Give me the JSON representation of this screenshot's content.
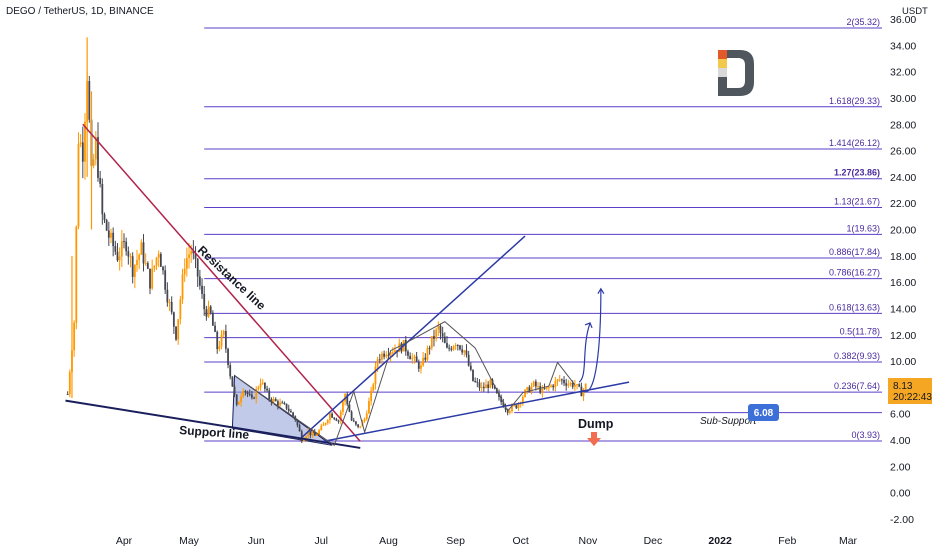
{
  "header": {
    "symbol_line": "DEGO / TetherUS, 1D, BINANCE"
  },
  "axis": {
    "unit": "USDT"
  },
  "price_badge": {
    "price": "8.13",
    "countdown": "20:22:43",
    "color": "#f5a623"
  },
  "chart_data": {
    "type": "candlestick",
    "title": "DEGO / TetherUS, 1D, BINANCE",
    "ylabel": "USDT",
    "ylim": [
      -2.0,
      36.0
    ],
    "y_ticks": [
      "-2.00",
      "0.00",
      "2.00",
      "4.00",
      "6.00",
      "8.00",
      "10.00",
      "12.00",
      "14.00",
      "16.00",
      "18.00",
      "20.00",
      "22.00",
      "24.00",
      "26.00",
      "28.00",
      "30.00",
      "32.00",
      "34.00",
      "36.00"
    ],
    "x_ticks": [
      "Apr",
      "May",
      "Jun",
      "Jul",
      "Aug",
      "Sep",
      "Oct",
      "Nov",
      "Dec",
      "2022",
      "Feb",
      "Mar"
    ],
    "x_tick_dates": [
      "2021-04-01",
      "2021-05-01",
      "2021-06-01",
      "2021-07-01",
      "2021-08-01",
      "2021-09-01",
      "2021-10-01",
      "2021-11-01",
      "2021-12-01",
      "2022-01-01",
      "2022-02-01",
      "2022-03-01"
    ],
    "colors": {
      "up": "#ff9800",
      "down": "#434651",
      "fib": "#5b3fc9",
      "support": "#1a1f5c",
      "resistance": "#b2234b",
      "channel": "#2b3aa6",
      "zigzag": "#555555"
    },
    "price_path": [
      [
        "2021-03-06",
        7.5
      ],
      [
        "2021-03-09",
        13.0
      ],
      [
        "2021-03-11",
        27.0
      ],
      [
        "2021-03-13",
        26.0
      ],
      [
        "2021-03-15",
        32.0
      ],
      [
        "2021-03-17",
        24.0
      ],
      [
        "2021-03-19",
        26.5
      ],
      [
        "2021-03-22",
        21.0
      ],
      [
        "2021-03-25",
        19.5
      ],
      [
        "2021-03-29",
        18.0
      ],
      [
        "2021-04-02",
        19.0
      ],
      [
        "2021-04-05",
        17.0
      ],
      [
        "2021-04-09",
        18.5
      ],
      [
        "2021-04-13",
        16.0
      ],
      [
        "2021-04-17",
        18.5
      ],
      [
        "2021-04-21",
        15.0
      ],
      [
        "2021-04-25",
        12.0
      ],
      [
        "2021-04-29",
        17.5
      ],
      [
        "2021-05-02",
        18.5
      ],
      [
        "2021-05-05",
        16.5
      ],
      [
        "2021-05-08",
        14.0
      ],
      [
        "2021-05-11",
        13.5
      ],
      [
        "2021-05-14",
        11.0
      ],
      [
        "2021-05-17",
        12.0
      ],
      [
        "2021-05-20",
        9.0
      ],
      [
        "2021-05-23",
        6.5
      ],
      [
        "2021-05-26",
        8.0
      ],
      [
        "2021-05-30",
        7.0
      ],
      [
        "2021-06-03",
        8.5
      ],
      [
        "2021-06-07",
        7.2
      ],
      [
        "2021-06-11",
        6.8
      ],
      [
        "2021-06-15",
        6.5
      ],
      [
        "2021-06-19",
        5.6
      ],
      [
        "2021-06-22",
        4.1
      ],
      [
        "2021-06-25",
        4.6
      ],
      [
        "2021-06-28",
        4.3
      ],
      [
        "2021-07-02",
        5.1
      ],
      [
        "2021-07-05",
        6.0
      ],
      [
        "2021-07-09",
        5.5
      ],
      [
        "2021-07-12",
        7.5
      ],
      [
        "2021-07-15",
        5.5
      ],
      [
        "2021-07-18",
        4.9
      ],
      [
        "2021-07-21",
        5.6
      ],
      [
        "2021-07-24",
        7.5
      ],
      [
        "2021-07-27",
        10.2
      ],
      [
        "2021-07-31",
        10.8
      ],
      [
        "2021-08-04",
        10.9
      ],
      [
        "2021-08-08",
        11.2
      ],
      [
        "2021-08-12",
        10.2
      ],
      [
        "2021-08-16",
        9.5
      ],
      [
        "2021-08-20",
        11.2
      ],
      [
        "2021-08-24",
        12.5
      ],
      [
        "2021-08-28",
        10.8
      ],
      [
        "2021-09-01",
        11.5
      ],
      [
        "2021-09-05",
        10.8
      ],
      [
        "2021-09-09",
        8.5
      ],
      [
        "2021-09-13",
        7.9
      ],
      [
        "2021-09-17",
        8.3
      ],
      [
        "2021-09-21",
        7.1
      ],
      [
        "2021-09-25",
        6.3
      ],
      [
        "2021-09-29",
        6.6
      ],
      [
        "2021-10-03",
        7.6
      ],
      [
        "2021-10-07",
        8.2
      ],
      [
        "2021-10-11",
        7.7
      ],
      [
        "2021-10-15",
        8.1
      ],
      [
        "2021-10-19",
        8.6
      ],
      [
        "2021-10-23",
        8.3
      ],
      [
        "2021-10-26",
        8.2
      ],
      [
        "2021-10-29",
        7.6
      ],
      [
        "2021-10-31",
        8.13
      ]
    ],
    "fib_levels": [
      {
        "ratio": "0",
        "price": 3.93,
        "label": "0(3.93)"
      },
      {
        "ratio": "0.236",
        "price": 7.64,
        "label": "0.236(7.64)"
      },
      {
        "ratio": "0.382",
        "price": 9.93,
        "label": "0.382(9.93)"
      },
      {
        "ratio": "0.5",
        "price": 11.78,
        "label": "0.5(11.78)"
      },
      {
        "ratio": "0.618",
        "price": 13.63,
        "label": "0.618(13.63)"
      },
      {
        "ratio": "0.786",
        "price": 16.27,
        "label": "0.786(16.27)"
      },
      {
        "ratio": "0.886",
        "price": 17.84,
        "label": "0.886(17.84)"
      },
      {
        "ratio": "1",
        "price": 19.63,
        "label": "1(19.63)"
      },
      {
        "ratio": "1.13",
        "price": 21.67,
        "label": "1.13(21.67)"
      },
      {
        "ratio": "1.27",
        "price": 23.86,
        "label": "1.27(23.86)"
      },
      {
        "ratio": "1.414",
        "price": 26.12,
        "label": "1.414(26.12)"
      },
      {
        "ratio": "1.618",
        "price": 29.33,
        "label": "1.618(29.33)"
      },
      {
        "ratio": "2",
        "price": 35.32,
        "label": "2(35.32)"
      }
    ],
    "sub_support": {
      "price": 6.08,
      "label": "Sub-Support",
      "value_label": "6.08"
    },
    "annotations": {
      "support_line": "Support line",
      "resistance_line": "Resistance line",
      "dump": "Dump"
    },
    "trendlines": [
      {
        "name": "support",
        "from": [
          "2021-03-05",
          7.0
        ],
        "to": [
          "2021-07-19",
          3.4
        ]
      },
      {
        "name": "resistance",
        "from": [
          "2021-03-13",
          28.0
        ],
        "to": [
          "2021-07-19",
          3.9
        ]
      },
      {
        "name": "channel-upper",
        "from": [
          "2021-06-22",
          4.2
        ],
        "to": [
          "2021-10-03",
          19.5
        ]
      },
      {
        "name": "channel-lower",
        "from": [
          "2021-07-02",
          3.9
        ],
        "to": [
          "2021-11-20",
          8.4
        ]
      }
    ]
  }
}
